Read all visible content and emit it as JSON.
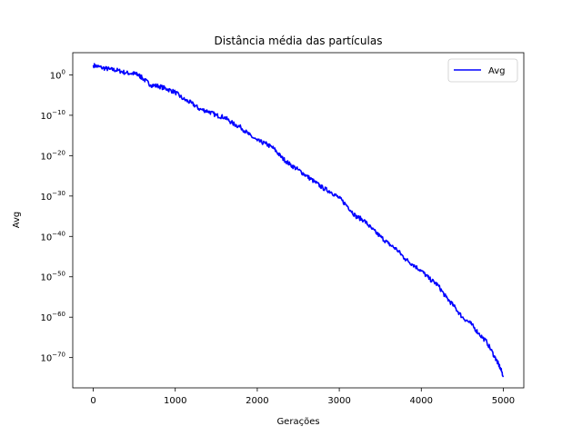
{
  "chart_data": {
    "type": "line",
    "title": "Distância média das partículas",
    "xlabel": "Gerações",
    "ylabel": "Avg",
    "yscale": "log",
    "xlim": [
      -250,
      5250
    ],
    "ylim_exponent": [
      -77.5,
      5.5
    ],
    "grid": false,
    "legend_placement": "top-right",
    "x_ticks": [
      0,
      1000,
      2000,
      3000,
      4000,
      5000
    ],
    "x_tick_labels": [
      "0",
      "1000",
      "2000",
      "3000",
      "4000",
      "5000"
    ],
    "y_tick_exponents": [
      0,
      -10,
      -20,
      -30,
      -40,
      -50,
      -60,
      -70
    ],
    "y_tick_labels": [
      {
        "base": "10",
        "exp": "0"
      },
      {
        "base": "10",
        "exp": "−10"
      },
      {
        "base": "10",
        "exp": "−20"
      },
      {
        "base": "10",
        "exp": "−30"
      },
      {
        "base": "10",
        "exp": "−40"
      },
      {
        "base": "10",
        "exp": "−50"
      },
      {
        "base": "10",
        "exp": "−60"
      },
      {
        "base": "10",
        "exp": "−70"
      }
    ],
    "series": [
      {
        "name": "Avg",
        "color": "#0000ff",
        "x": [
          0,
          100,
          200,
          300,
          400,
          500,
          550,
          600,
          700,
          800,
          900,
          1000,
          1100,
          1200,
          1300,
          1400,
          1500,
          1600,
          1700,
          1800,
          1900,
          2000,
          2100,
          2200,
          2300,
          2400,
          2500,
          2600,
          2700,
          2800,
          2900,
          3000,
          3100,
          3200,
          3300,
          3400,
          3500,
          3600,
          3700,
          3800,
          3900,
          4000,
          4100,
          4200,
          4300,
          4400,
          4500,
          4600,
          4700,
          4800,
          4900,
          4950,
          5000
        ],
        "y_exponent": [
          2.4,
          1.8,
          1.4,
          1.1,
          0.5,
          0.3,
          0.0,
          -0.8,
          -2.5,
          -2.8,
          -3.5,
          -4.3,
          -6.0,
          -7.0,
          -8.5,
          -9.0,
          -10.0,
          -10.5,
          -12.0,
          -13.0,
          -14.8,
          -16.3,
          -17.0,
          -18.2,
          -20.5,
          -22.2,
          -23.5,
          -25.0,
          -26.5,
          -28.0,
          -29.0,
          -30.5,
          -32.5,
          -35.0,
          -36.0,
          -38.2,
          -40.0,
          -41.8,
          -43.2,
          -45.5,
          -47.0,
          -48.5,
          -50.5,
          -52.0,
          -55.0,
          -57.3,
          -60.0,
          -61.5,
          -64.0,
          -66.2,
          -70.0,
          -72.0,
          -74.5
        ]
      }
    ]
  }
}
